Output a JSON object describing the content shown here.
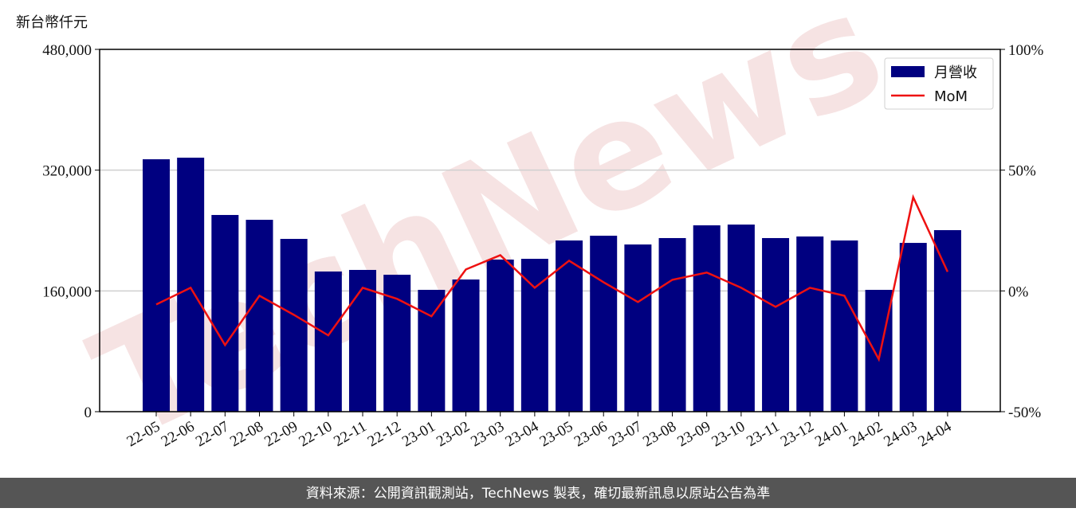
{
  "chart_data": {
    "type": "bar-line",
    "y_label": "新台幣仟元",
    "watermark": "TechNews",
    "footer": "資料來源：公開資訊觀測站，TechNews 製表，確切最新訊息以原站公告為準",
    "categories": [
      "22-05",
      "22-06",
      "22-07",
      "22-08",
      "22-09",
      "22-10",
      "22-11",
      "22-12",
      "23-01",
      "23-02",
      "23-03",
      "23-04",
      "23-05",
      "23-06",
      "23-07",
      "23-08",
      "23-09",
      "23-10",
      "23-11",
      "23-12",
      "24-01",
      "24-02",
      "24-03",
      "24-04"
    ],
    "series": [
      {
        "name": "月營收",
        "type": "bar",
        "color": "#000080",
        "axis": "y",
        "values": [
          334400,
          336500,
          260600,
          254200,
          228900,
          185700,
          187800,
          181400,
          161400,
          175100,
          201500,
          202500,
          226800,
          233100,
          221500,
          230000,
          246900,
          247900,
          230000,
          232100,
          226800,
          161400,
          223600,
          240500
        ]
      },
      {
        "name": "MoM",
        "type": "line",
        "color": "#ee1111",
        "axis": "y2",
        "values": [
          -5.6,
          1.3,
          -22.4,
          -2.0,
          -9.9,
          -18.4,
          1.3,
          -3.3,
          -10.5,
          8.9,
          14.8,
          1.3,
          12.5,
          3.6,
          -4.6,
          4.6,
          7.6,
          1.3,
          -6.6,
          1.3,
          -2.0,
          -28.3,
          38.8,
          7.9
        ]
      }
    ],
    "ylim": [
      0,
      480000
    ],
    "yticks": [
      0,
      {
        "value": 160000,
        "label": "160,000"
      },
      {
        "value": 320000,
        "label": "320,000"
      },
      {
        "value": 480000,
        "label": "480,000"
      }
    ],
    "y2lim": [
      -50,
      100
    ],
    "y2ticks": [
      {
        "value": -50,
        "label": "-50%"
      },
      {
        "value": 0,
        "label": "0%"
      },
      {
        "value": 50,
        "label": "50%"
      },
      {
        "value": 100,
        "label": "100%"
      }
    ],
    "grid": true,
    "legend": "upper right"
  }
}
